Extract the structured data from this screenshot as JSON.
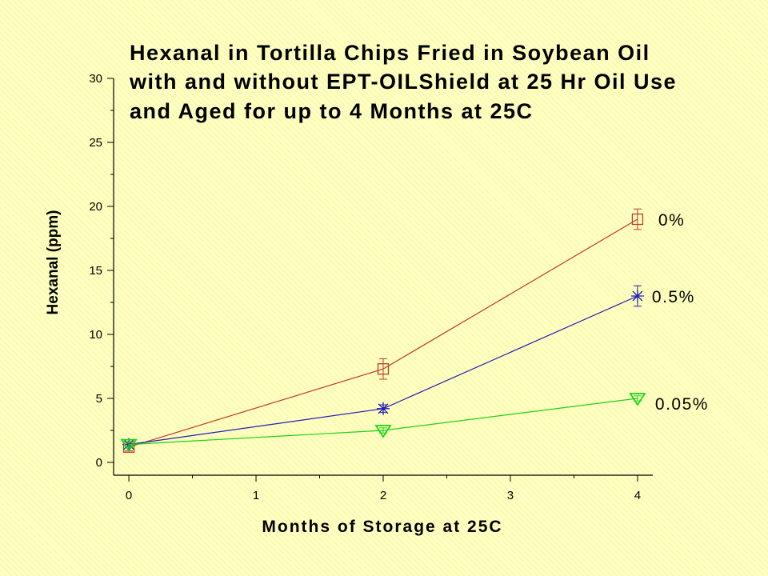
{
  "chart_data": {
    "type": "line",
    "title": [
      "Hexanal in Tortilla Chips Fried in Soybean Oil",
      "with and without EPT-OILShield at 25 Hr Oil Use",
      "and Aged for up to 4 Months at 25C"
    ],
    "xlabel": "Months of Storage at 25C",
    "ylabel": "Hexanal (ppm)",
    "xlim": [
      -0.12,
      4.12
    ],
    "ylim": [
      -1,
      30
    ],
    "x_ticks": [
      0,
      1,
      2,
      3,
      4
    ],
    "y_ticks": [
      0,
      5,
      10,
      15,
      20,
      25,
      30
    ],
    "grid": false,
    "legend": "labels at line ends (right)",
    "series": [
      {
        "name": "0%",
        "color": "#c0392b",
        "marker": "square",
        "x": [
          0,
          2,
          4
        ],
        "y": [
          1.2,
          7.3,
          19.0
        ],
        "error": [
          0.3,
          0.8,
          0.8
        ]
      },
      {
        "name": "0.5%",
        "color": "#1f1fb4",
        "marker": "asterisk",
        "x": [
          0,
          2,
          4
        ],
        "y": [
          1.4,
          4.2,
          13.0
        ],
        "error": [
          0.2,
          0.3,
          0.8
        ]
      },
      {
        "name": "0.05%",
        "color": "#19d419",
        "marker": "triangle-down",
        "x": [
          0,
          2,
          4
        ],
        "y": [
          1.4,
          2.5,
          5.0
        ],
        "error": [
          0.2,
          0.2,
          0.2
        ]
      }
    ]
  }
}
